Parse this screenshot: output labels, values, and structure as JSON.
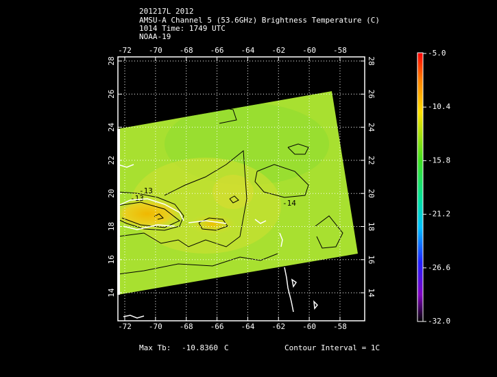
{
  "header": {
    "lines": [
      "201217L 2012",
      "AMSU-A Channel 5 (53.6GHz) Brightness Temperature (C)",
      "1014 Time: 1749 UTC",
      "NOAA-19"
    ]
  },
  "map": {
    "lon_ticks": [
      "-72",
      "-70",
      "-68",
      "-66",
      "-64",
      "-62",
      "-60",
      "-58"
    ],
    "lat_ticks": [
      "28",
      "26",
      "24",
      "22",
      "20",
      "18",
      "16",
      "14"
    ],
    "contour_labels": [
      "-13",
      "-13",
      "-14"
    ]
  },
  "colorbar": {
    "ticks": [
      "-5.0",
      "-10.4",
      "-15.8",
      "-21.2",
      "-26.6",
      "-32.0"
    ]
  },
  "footer": {
    "max_tb_label": "Max Tb:",
    "max_tb_value": "-10.8360",
    "max_tb_unit": "C",
    "contour_interval": "Contour Interval = 1C"
  }
}
